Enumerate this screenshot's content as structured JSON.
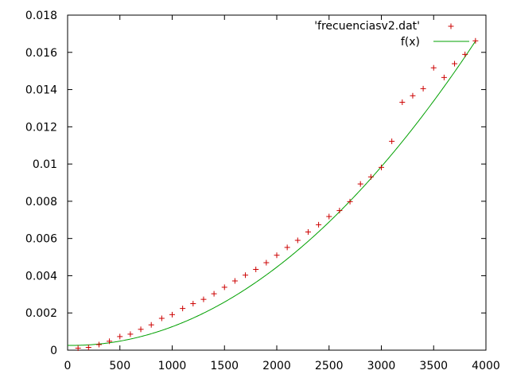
{
  "chart_data": {
    "type": "scatter",
    "title": "",
    "xlabel": "",
    "ylabel": "",
    "xlim": [
      0,
      4000
    ],
    "ylim": [
      0,
      0.018
    ],
    "x_ticks": [
      "0",
      "500",
      "1000",
      "1500",
      "2000",
      "2500",
      "3000",
      "3500",
      "4000"
    ],
    "y_ticks": [
      "0",
      "0.002",
      "0.004",
      "0.006",
      "0.008",
      "0.01",
      "0.012",
      "0.014",
      "0.016",
      "0.018"
    ],
    "grid": false,
    "legend_position": "top-right",
    "series": [
      {
        "name": "'frecuenciasv2.dat'",
        "kind": "points",
        "marker": "plus",
        "color": "#cc0000",
        "points": [
          [
            100,
            0.00011
          ],
          [
            200,
            0.00015
          ],
          [
            300,
            0.0003
          ],
          [
            400,
            0.00048
          ],
          [
            500,
            0.00073
          ],
          [
            600,
            0.00086
          ],
          [
            700,
            0.00112
          ],
          [
            800,
            0.00136
          ],
          [
            900,
            0.00171
          ],
          [
            1000,
            0.00191
          ],
          [
            1100,
            0.00224
          ],
          [
            1200,
            0.0025
          ],
          [
            1300,
            0.00273
          ],
          [
            1400,
            0.00303
          ],
          [
            1500,
            0.00338
          ],
          [
            1600,
            0.00372
          ],
          [
            1700,
            0.00403
          ],
          [
            1800,
            0.00434
          ],
          [
            1900,
            0.0047
          ],
          [
            2000,
            0.0051
          ],
          [
            2100,
            0.00552
          ],
          [
            2200,
            0.0059
          ],
          [
            2300,
            0.00635
          ],
          [
            2400,
            0.00674
          ],
          [
            2500,
            0.00718
          ],
          [
            2600,
            0.0075
          ],
          [
            2700,
            0.00798
          ],
          [
            2800,
            0.00893
          ],
          [
            2900,
            0.00931
          ],
          [
            3000,
            0.00982
          ],
          [
            3100,
            0.01122
          ],
          [
            3200,
            0.01332
          ],
          [
            3300,
            0.01367
          ],
          [
            3400,
            0.01405
          ],
          [
            3500,
            0.01517
          ],
          [
            3600,
            0.01465
          ],
          [
            3700,
            0.01539
          ],
          [
            3800,
            0.01589
          ],
          [
            3900,
            0.01662
          ]
        ]
      },
      {
        "name": "f(x)",
        "kind": "line",
        "color": "#00a000",
        "x_range": [
          0,
          3900
        ],
        "fit": {
          "a": 1.1e-09,
          "b": -1e-07,
          "c": 0.00026
        }
      }
    ]
  }
}
